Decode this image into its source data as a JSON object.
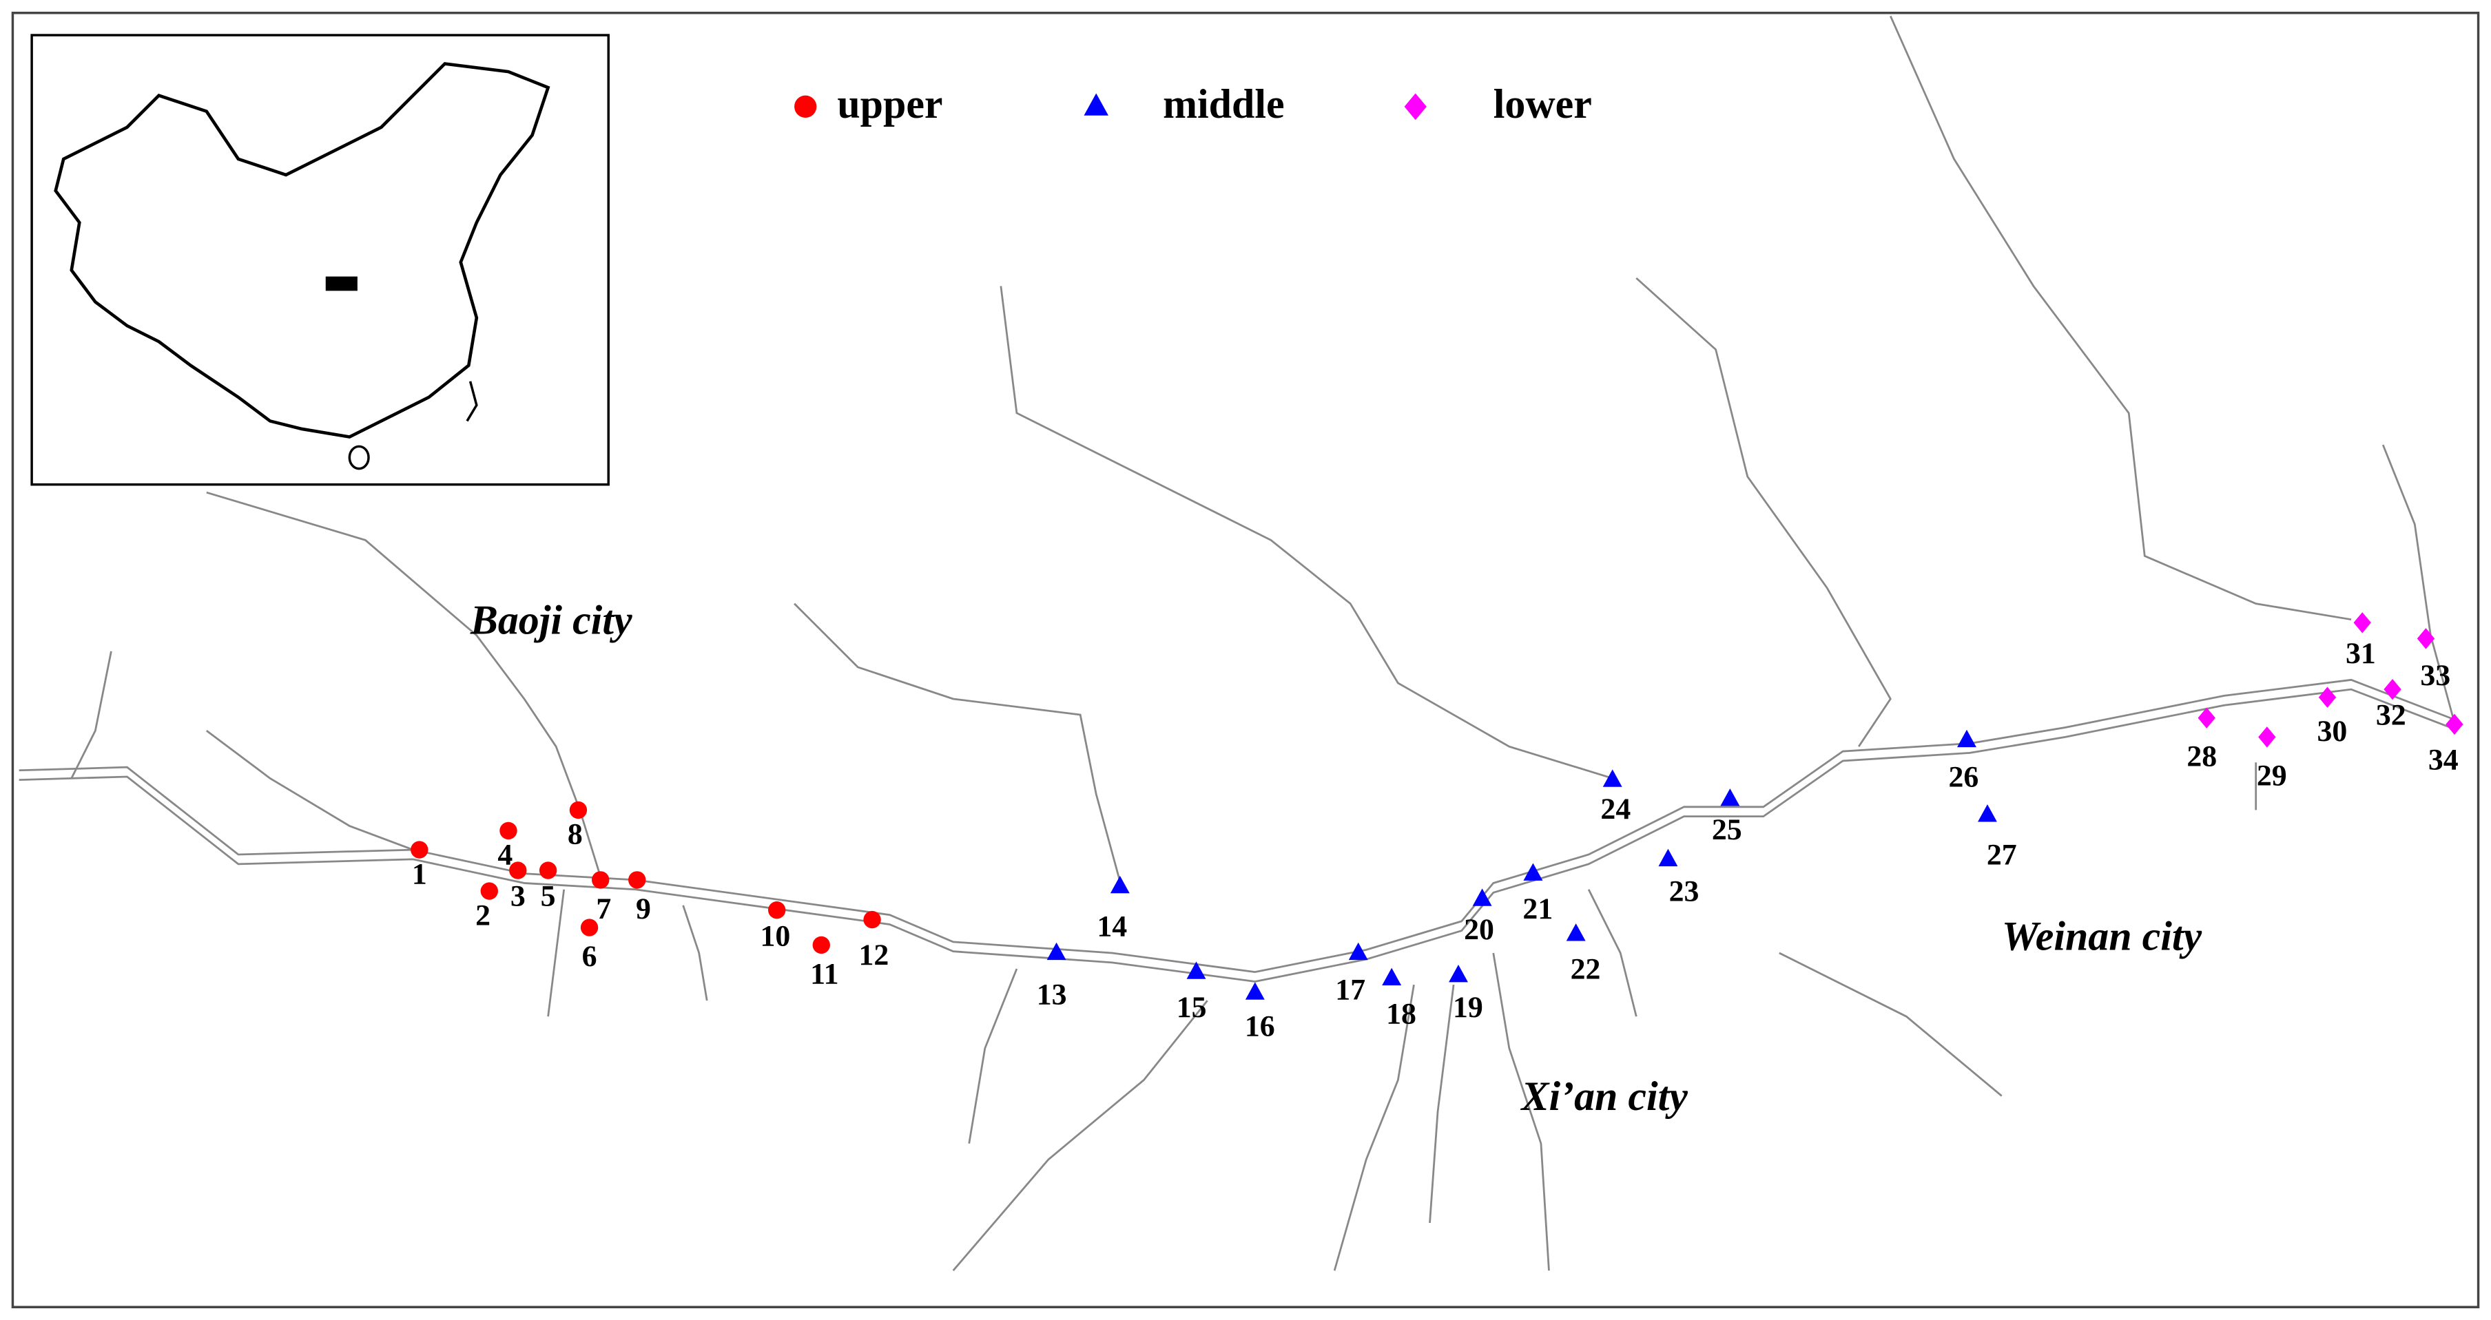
{
  "legend": [
    {
      "label": "upper",
      "shape": "circle",
      "color": "#ff0000"
    },
    {
      "label": "middle",
      "shape": "triangle",
      "color": "#0000ff"
    },
    {
      "label": "lower",
      "shape": "diamond",
      "color": "#ff00ff"
    }
  ],
  "cities": [
    "Baoji city",
    "Xi’an city",
    "Weinan city"
  ],
  "sites": [
    {
      "label": "1",
      "group": 0
    },
    {
      "label": "2",
      "group": 0
    },
    {
      "label": "3",
      "group": 0
    },
    {
      "label": "4",
      "group": 0
    },
    {
      "label": "5",
      "group": 0
    },
    {
      "label": "6",
      "group": 0
    },
    {
      "label": "7",
      "group": 0
    },
    {
      "label": "8",
      "group": 0
    },
    {
      "label": "9",
      "group": 0
    },
    {
      "label": "10",
      "group": 0
    },
    {
      "label": "11",
      "group": 0
    },
    {
      "label": "12",
      "group": 0
    },
    {
      "label": "13",
      "group": 1
    },
    {
      "label": "14",
      "group": 1
    },
    {
      "label": "15",
      "group": 1
    },
    {
      "label": "16",
      "group": 1
    },
    {
      "label": "17",
      "group": 1
    },
    {
      "label": "18",
      "group": 1
    },
    {
      "label": "19",
      "group": 1
    },
    {
      "label": "20",
      "group": 1
    },
    {
      "label": "21",
      "group": 1
    },
    {
      "label": "22",
      "group": 1
    },
    {
      "label": "23",
      "group": 1
    },
    {
      "label": "24",
      "group": 1
    },
    {
      "label": "25",
      "group": 1
    },
    {
      "label": "26",
      "group": 1
    },
    {
      "label": "27",
      "group": 1
    },
    {
      "label": "28",
      "group": 2
    },
    {
      "label": "29",
      "group": 2
    },
    {
      "label": "30",
      "group": 2
    },
    {
      "label": "31",
      "group": 2
    },
    {
      "label": "32",
      "group": 2
    },
    {
      "label": "33",
      "group": 2
    },
    {
      "label": "34",
      "group": 2
    }
  ]
}
